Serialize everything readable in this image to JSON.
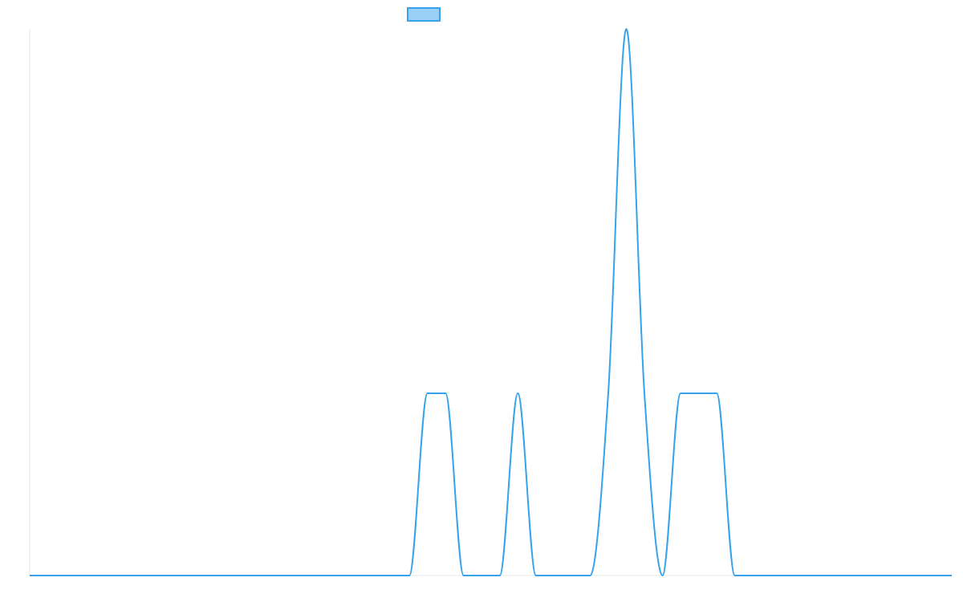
{
  "chart_data": {
    "type": "line",
    "title": "",
    "xlabel": "",
    "ylabel": "",
    "x": [
      0,
      21,
      22,
      23,
      24,
      25,
      26,
      27,
      28,
      29,
      30,
      31,
      32,
      33,
      34,
      35,
      36,
      37,
      38,
      39,
      40,
      41,
      42,
      43,
      44,
      45,
      46,
      47,
      48,
      49,
      50,
      51
    ],
    "series": [
      {
        "name": "",
        "color": "#36a2eb",
        "fill": "#9ad0f5",
        "values": [
          0,
          0,
          1,
          1,
          0,
          0,
          0,
          1,
          0,
          0,
          0,
          0,
          1,
          3,
          1,
          0,
          1,
          1,
          1,
          0,
          0,
          0,
          0,
          0,
          0,
          0,
          0,
          0,
          0,
          0,
          0,
          0
        ]
      }
    ],
    "legend": {
      "position": "top",
      "show_label": false
    },
    "ylim": [
      0,
      3
    ],
    "xlim": [
      0,
      51
    ],
    "grid": false,
    "axis_color": "#e5e5e5",
    "curve": "smooth"
  }
}
